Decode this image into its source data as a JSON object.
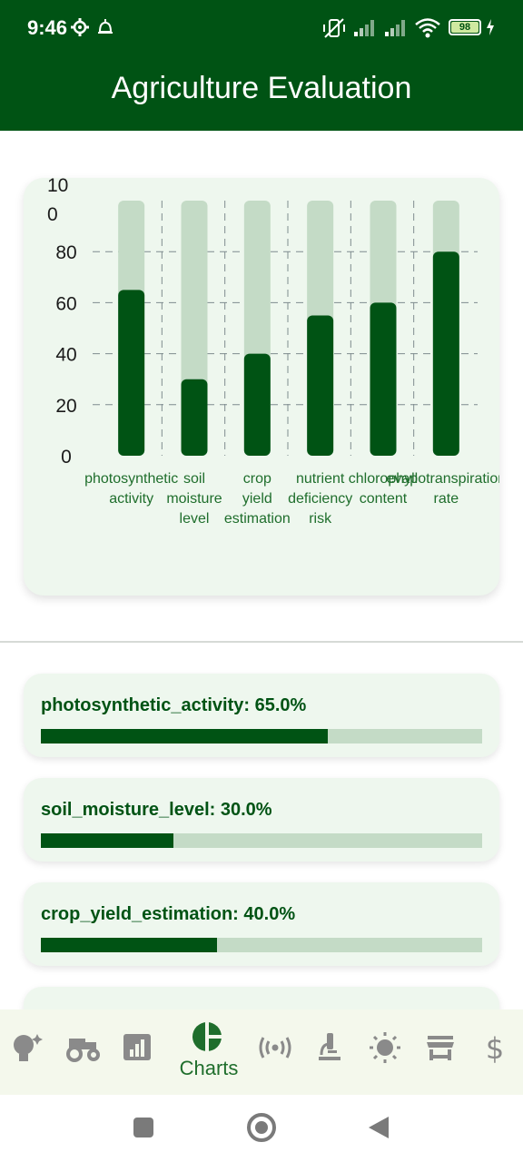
{
  "status_bar": {
    "time": "9:46",
    "battery": "98"
  },
  "app_bar": {
    "title": "Agriculture Evaluation"
  },
  "chart_data": {
    "type": "bar",
    "categories": [
      [
        "photosynthetic",
        "activity"
      ],
      [
        "soil",
        "moisture",
        "level"
      ],
      [
        "crop",
        "yield",
        "estimation"
      ],
      [
        "nutrient",
        "deficiency",
        "risk"
      ],
      [
        "chlorophyll",
        "content"
      ],
      [
        "evapotranspiration",
        "rate"
      ]
    ],
    "values": [
      65,
      30,
      40,
      55,
      60,
      80
    ],
    "ylim": [
      0,
      100
    ],
    "yticks": [
      "0",
      "20",
      "40",
      "60",
      "80"
    ],
    "ytick_top": [
      "10",
      "0"
    ],
    "grid": true,
    "colors": {
      "bar": "#005314",
      "background_bar": "#c4dbc6",
      "grid": "#7f8c8f",
      "tick": "#1b1b1b",
      "label": "#1f6e2c"
    }
  },
  "progress_items": [
    {
      "label": "photosynthetic_activity: 65.0%",
      "value": 0.65
    },
    {
      "label": "soil_moisture_level: 30.0%",
      "value": 0.3
    },
    {
      "label": "crop_yield_estimation: 40.0%",
      "value": 0.4
    }
  ],
  "bottom_nav": {
    "items": [
      {
        "icon": "lightbulb-sparkle-icon"
      },
      {
        "icon": "tractor-icon"
      },
      {
        "icon": "bar-chart-icon"
      },
      {
        "icon": "pie-chart-icon",
        "label": "Charts",
        "active": true
      },
      {
        "icon": "sensor-signal-icon"
      },
      {
        "icon": "microscope-icon"
      },
      {
        "icon": "sun-icon"
      },
      {
        "icon": "store-icon"
      },
      {
        "icon": "dollar-icon"
      }
    ]
  },
  "colors": {
    "primary": "#005314",
    "card": "#eef7ee",
    "nav_icon": "#8a8a8a"
  }
}
